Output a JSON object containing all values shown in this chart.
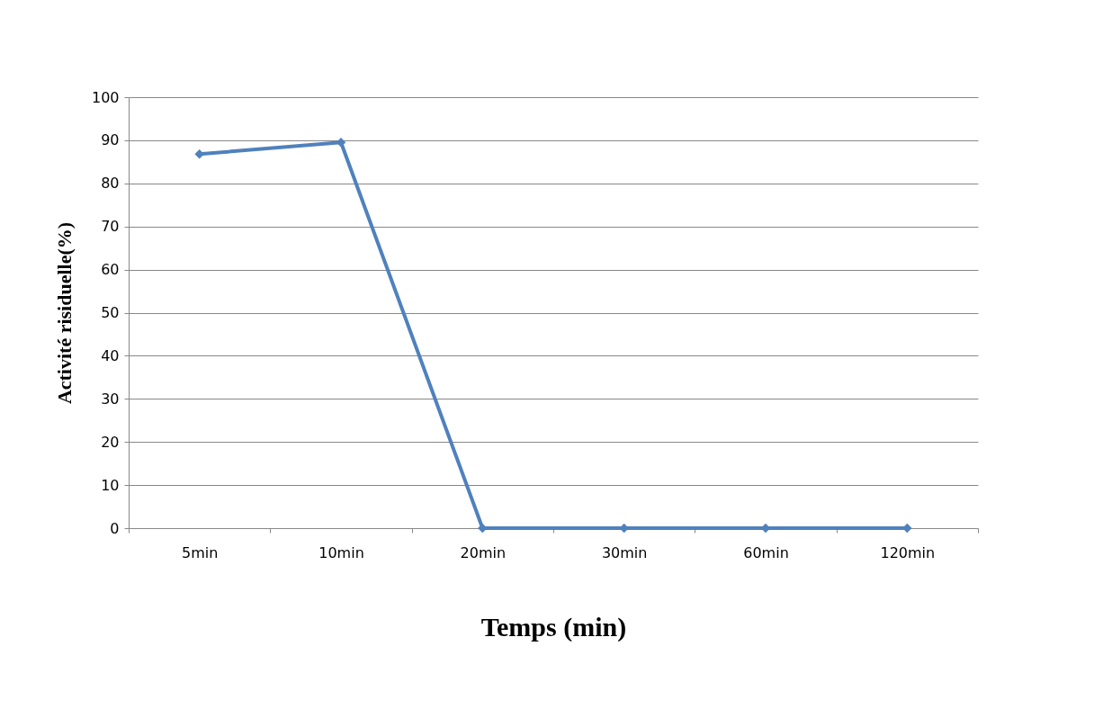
{
  "chart_data": {
    "type": "line",
    "xlabel": "Temps (min)",
    "ylabel": "Activité risiduelle(%)",
    "categories": [
      "5min",
      "10min",
      "20min",
      "30min",
      "60min",
      "120min"
    ],
    "series": [
      {
        "color": "#4f81bd",
        "values": [
          86.8,
          89.5,
          0,
          0,
          0,
          0
        ]
      }
    ],
    "ylim": [
      0,
      100
    ],
    "yticks": [
      0,
      10,
      20,
      30,
      40,
      50,
      60,
      70,
      80,
      90,
      100
    ],
    "grid": "y",
    "legend": false,
    "marker": "diamond",
    "line_style": "solid"
  }
}
